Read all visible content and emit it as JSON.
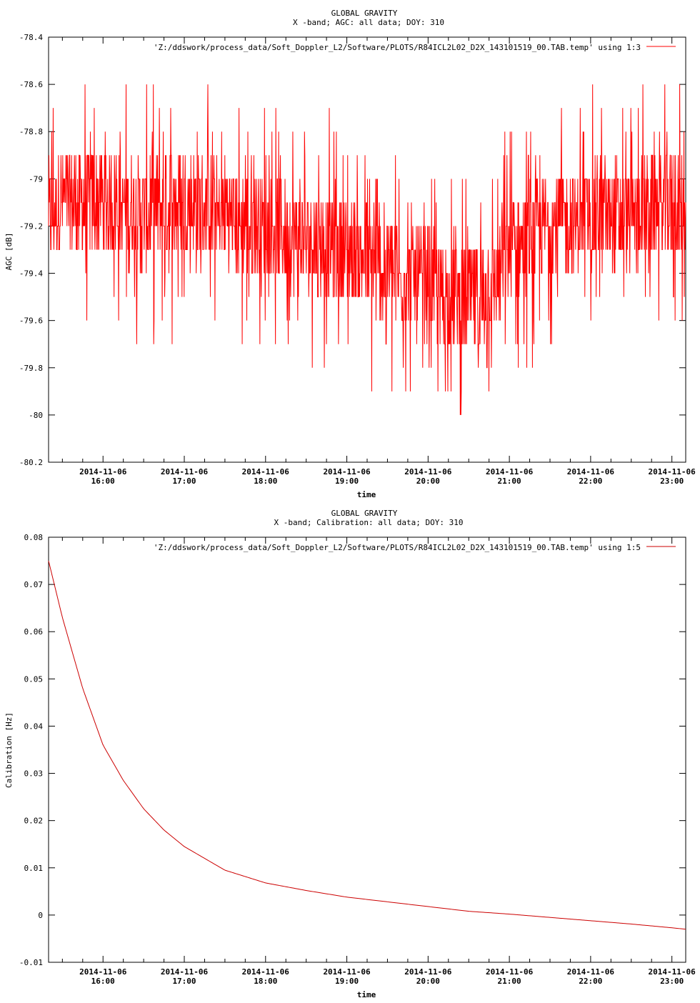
{
  "chart_data": [
    {
      "type": "line",
      "title": "GLOBAL GRAVITY",
      "subtitle": "X -band; AGC: all data; DOY: 310",
      "xlabel": "time",
      "ylabel": "AGC [dB]",
      "ylim": [
        -80.2,
        -78.4
      ],
      "yticks": [
        "-78.4",
        "-78.6",
        "-78.8",
        "-79",
        "-79.2",
        "-79.4",
        "-79.6",
        "-79.8",
        "-80",
        "-80.2"
      ],
      "xlim_hours": [
        15.33,
        23.17
      ],
      "xtick_dates": [
        "2014-11-06",
        "2014-11-06",
        "2014-11-06",
        "2014-11-06",
        "2014-11-06",
        "2014-11-06",
        "2014-11-06",
        "2014-11-06"
      ],
      "xtick_times": [
        "16:00",
        "17:00",
        "18:00",
        "19:00",
        "20:00",
        "21:00",
        "22:00",
        "23:00"
      ],
      "legend": "'Z:/ddswork/process_data/Soft_Doppler_L2/Software/PLOTS/R84ICL2L02_D2X_143101519_00.TAB.temp' using 1:3",
      "legend_position": "top-right",
      "series_color": "#ff0000",
      "grid": false,
      "x": [
        15.33,
        15.5,
        16.0,
        16.5,
        17.0,
        17.5,
        18.0,
        18.5,
        19.0,
        19.5,
        20.0,
        20.3,
        20.5,
        20.8,
        21.0,
        21.5,
        22.0,
        22.5,
        23.0,
        23.17
      ],
      "values": [
        -79.15,
        -79.1,
        -79.1,
        -79.15,
        -79.1,
        -79.15,
        -79.2,
        -79.25,
        -79.3,
        -79.4,
        -79.45,
        -79.5,
        -79.5,
        -79.45,
        -79.3,
        -79.2,
        -79.15,
        -79.15,
        -79.1,
        -79.15
      ],
      "noise_range": [
        -80.2,
        -78.5
      ]
    },
    {
      "type": "line",
      "title": "GLOBAL GRAVITY",
      "subtitle": "X -band; Calibration: all data; DOY: 310",
      "xlabel": "time",
      "ylabel": "Calibration [Hz]",
      "ylim": [
        -0.01,
        0.08
      ],
      "yticks": [
        "0.08",
        "0.07",
        "0.06",
        "0.05",
        "0.04",
        "0.03",
        "0.02",
        "0.01",
        "0",
        "-0.01"
      ],
      "xlim_hours": [
        15.33,
        23.17
      ],
      "xtick_dates": [
        "2014-11-06",
        "2014-11-06",
        "2014-11-06",
        "2014-11-06",
        "2014-11-06",
        "2014-11-06",
        "2014-11-06",
        "2014-11-06"
      ],
      "xtick_times": [
        "16:00",
        "17:00",
        "18:00",
        "19:00",
        "20:00",
        "21:00",
        "22:00",
        "23:00"
      ],
      "legend": "'Z:/ddswork/process_data/Soft_Doppler_L2/Software/PLOTS/R84ICL2L02_D2X_143101519_00.TAB.temp' using 1:5",
      "legend_position": "top-right",
      "series_color": "#cc0000",
      "grid": false,
      "x": [
        15.33,
        15.5,
        15.75,
        16.0,
        16.25,
        16.5,
        16.75,
        17.0,
        17.5,
        18.0,
        18.5,
        19.0,
        19.5,
        20.0,
        20.5,
        21.0,
        21.5,
        22.0,
        22.5,
        23.0,
        23.17
      ],
      "values": [
        0.075,
        0.063,
        0.048,
        0.036,
        0.0285,
        0.0225,
        0.018,
        0.0145,
        0.0095,
        0.0068,
        0.0052,
        0.0038,
        0.0028,
        0.0018,
        0.0008,
        0.0002,
        -0.0005,
        -0.0012,
        -0.0019,
        -0.0027,
        -0.003
      ]
    }
  ]
}
